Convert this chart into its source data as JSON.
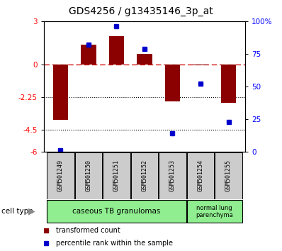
{
  "title": "GDS4256 / g13435146_3p_at",
  "samples": [
    "GSM501249",
    "GSM501250",
    "GSM501251",
    "GSM501252",
    "GSM501253",
    "GSM501254",
    "GSM501255"
  ],
  "transformed_counts": [
    -3.8,
    1.4,
    2.0,
    0.75,
    -2.5,
    -0.05,
    -2.6
  ],
  "percentile_ranks": [
    1,
    82,
    96,
    79,
    14,
    52,
    23
  ],
  "ylim_left": [
    -6,
    3
  ],
  "ylim_right": [
    0,
    100
  ],
  "yticks_left": [
    3,
    0,
    -2.25,
    -4.5,
    -6
  ],
  "ytick_labels_left": [
    "3",
    "0",
    "-2.25",
    "-4.5",
    "-6"
  ],
  "yticks_right": [
    100,
    75,
    50,
    25,
    0
  ],
  "ytick_labels_right": [
    "100%",
    "75",
    "50",
    "25",
    "0"
  ],
  "hlines_dotted": [
    -2.25,
    -4.5
  ],
  "hline_dashed": 0,
  "bar_color": "#8B0000",
  "dot_color": "#0000CC",
  "cell_type_label": "cell type",
  "legend_bar_label": "transformed count",
  "legend_dot_label": "percentile rank within the sample",
  "background_color": "#ffffff",
  "plot_bg": "#ffffff",
  "title_fontsize": 10,
  "tick_fontsize": 7.5,
  "sample_fontsize": 6,
  "label_fontsize": 8
}
